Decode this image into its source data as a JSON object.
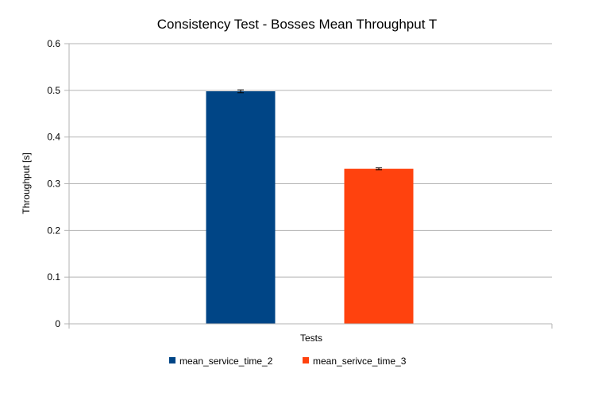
{
  "chart_data": {
    "type": "bar",
    "title": "Consistency Test - Bosses Mean Throughput T",
    "xlabel": "Tests",
    "ylabel": "Throughput [s]",
    "ylim": [
      0,
      0.6
    ],
    "yticks": [
      "0",
      "0.1",
      "0.2",
      "0.3",
      "0.4",
      "0.5",
      "0.6"
    ],
    "grid": true,
    "legend_position": "bottom",
    "series": [
      {
        "name": "mean_service_time_2",
        "value": 0.498,
        "error": 0.003,
        "color": "#004586"
      },
      {
        "name": "mean_serivce_time_3",
        "value": 0.332,
        "error": 0.002,
        "color": "#ff420e"
      }
    ]
  }
}
